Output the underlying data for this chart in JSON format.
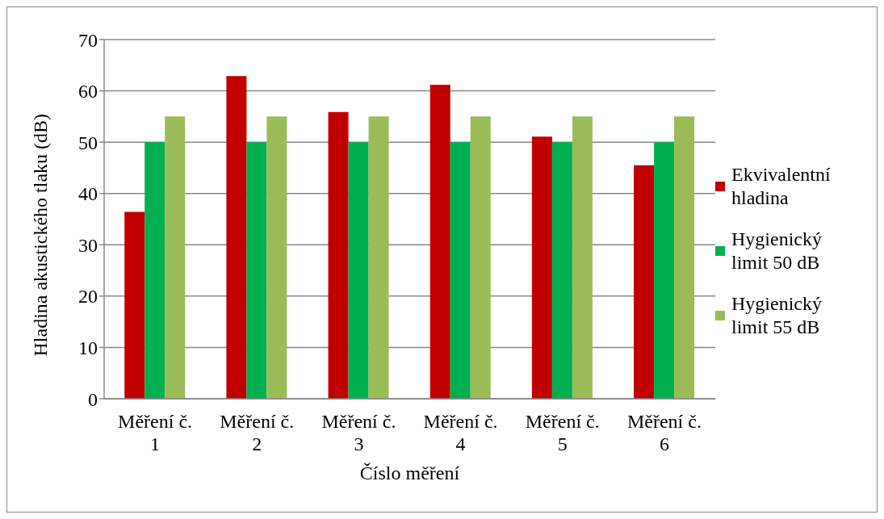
{
  "chart_data": {
    "type": "bar",
    "xlabel": "Číslo měření",
    "ylabel": "Hladina akustického tlaku (dB)",
    "categories": [
      "Měření č. 1",
      "Měření č. 2",
      "Měření č. 3",
      "Měření č. 4",
      "Měření č. 5",
      "Měření č. 6"
    ],
    "series": [
      {
        "name": "Ekvivalentní hladina",
        "color": "#c00000",
        "values": [
          36.4,
          62.9,
          55.9,
          61.2,
          51.1,
          45.5
        ]
      },
      {
        "name": "Hygienický limit 50 dB",
        "color": "#00b050",
        "values": [
          50,
          50,
          50,
          50,
          50,
          50
        ]
      },
      {
        "name": "Hygienický limit 55 dB",
        "color": "#9bbb59",
        "values": [
          55,
          55,
          55,
          55,
          55,
          55
        ]
      }
    ],
    "ylim": [
      0,
      70
    ],
    "yticks": [
      0,
      10,
      20,
      30,
      40,
      50,
      60,
      70
    ],
    "grid": "y",
    "legend": "right"
  }
}
